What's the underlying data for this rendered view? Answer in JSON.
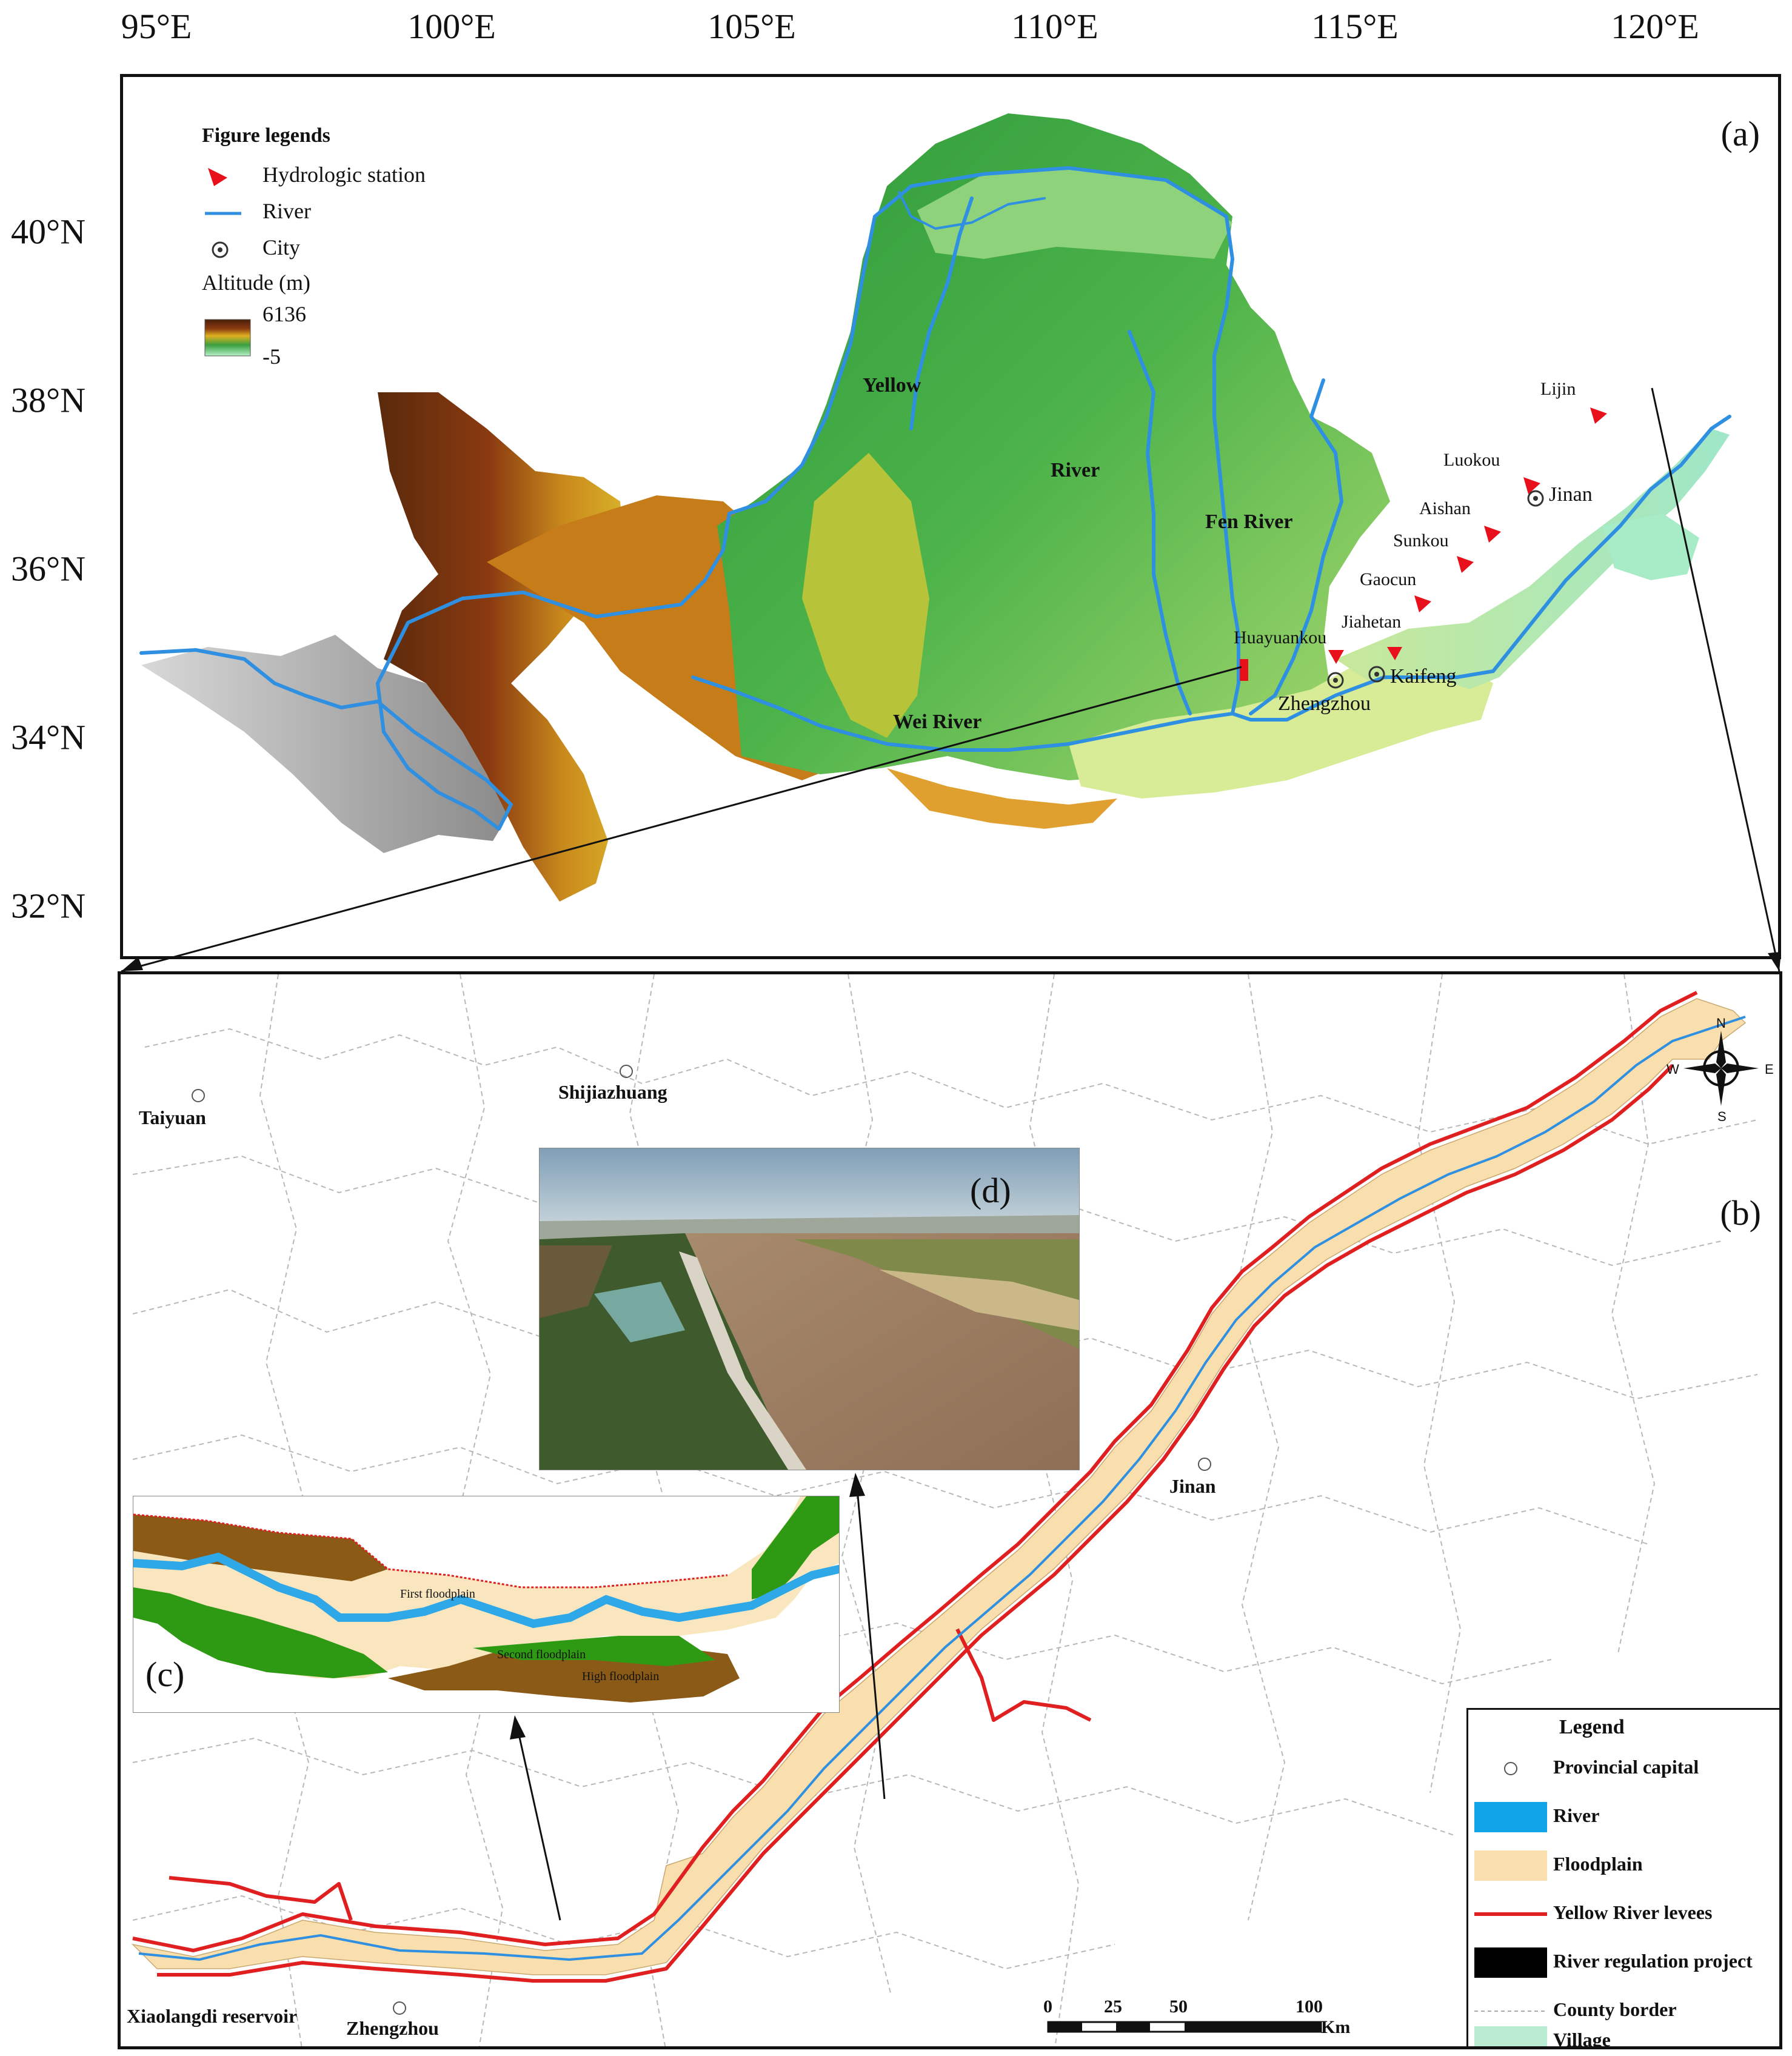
{
  "map_a": {
    "panel_tag": "(a)",
    "lon_labels": [
      "95°E",
      "100°E",
      "105°E",
      "110°E",
      "115°E",
      "120°E"
    ],
    "lat_labels": [
      "40°N",
      "38°N",
      "36°N",
      "34°N",
      "32°N"
    ],
    "legend": {
      "title": "Figure legends",
      "items": [
        "Hydrologic station",
        "River",
        "City"
      ],
      "altitude_title": "Altitude (m)",
      "altitude_max": "6136",
      "altitude_min": "-5"
    },
    "river_labels": [
      "Yellow",
      "River",
      "Fen River",
      "Wei River"
    ],
    "stations": [
      "Lijin",
      "Luokou",
      "Aishan",
      "Sunkou",
      "Gaocun",
      "Jiahetan",
      "Huayuankou"
    ],
    "cities": [
      "Jinan",
      "Zhengzhou",
      "Kaifeng"
    ]
  },
  "map_b": {
    "panel_tag": "(b)",
    "compass": {
      "n": "N",
      "s": "S",
      "e": "E",
      "w": "W"
    },
    "cities": [
      "Taiyuan",
      "Shijiazhuang",
      "Jinan",
      "Zhengzhou",
      "Xiaolangdi reservoir"
    ],
    "inset_c": {
      "tag": "(c)",
      "labels": [
        "First floodplain",
        "Second floodplain",
        "High floodplain"
      ]
    },
    "photo_d": {
      "tag": "(d)"
    },
    "legend": {
      "title": "Legend",
      "items": [
        "Provincial capital",
        "River",
        "Floodplain",
        "Yellow River levees",
        "River regulation project",
        "County border",
        "Village"
      ]
    },
    "scalebar": {
      "ticks": [
        "0",
        "25",
        "50",
        "100"
      ],
      "unit": "Km"
    }
  },
  "colors": {
    "river": "#2f8fe0",
    "floodplain": "#f9dfae",
    "levee": "#e02020",
    "village": "#b9ecd0",
    "station": "#e8101a"
  }
}
